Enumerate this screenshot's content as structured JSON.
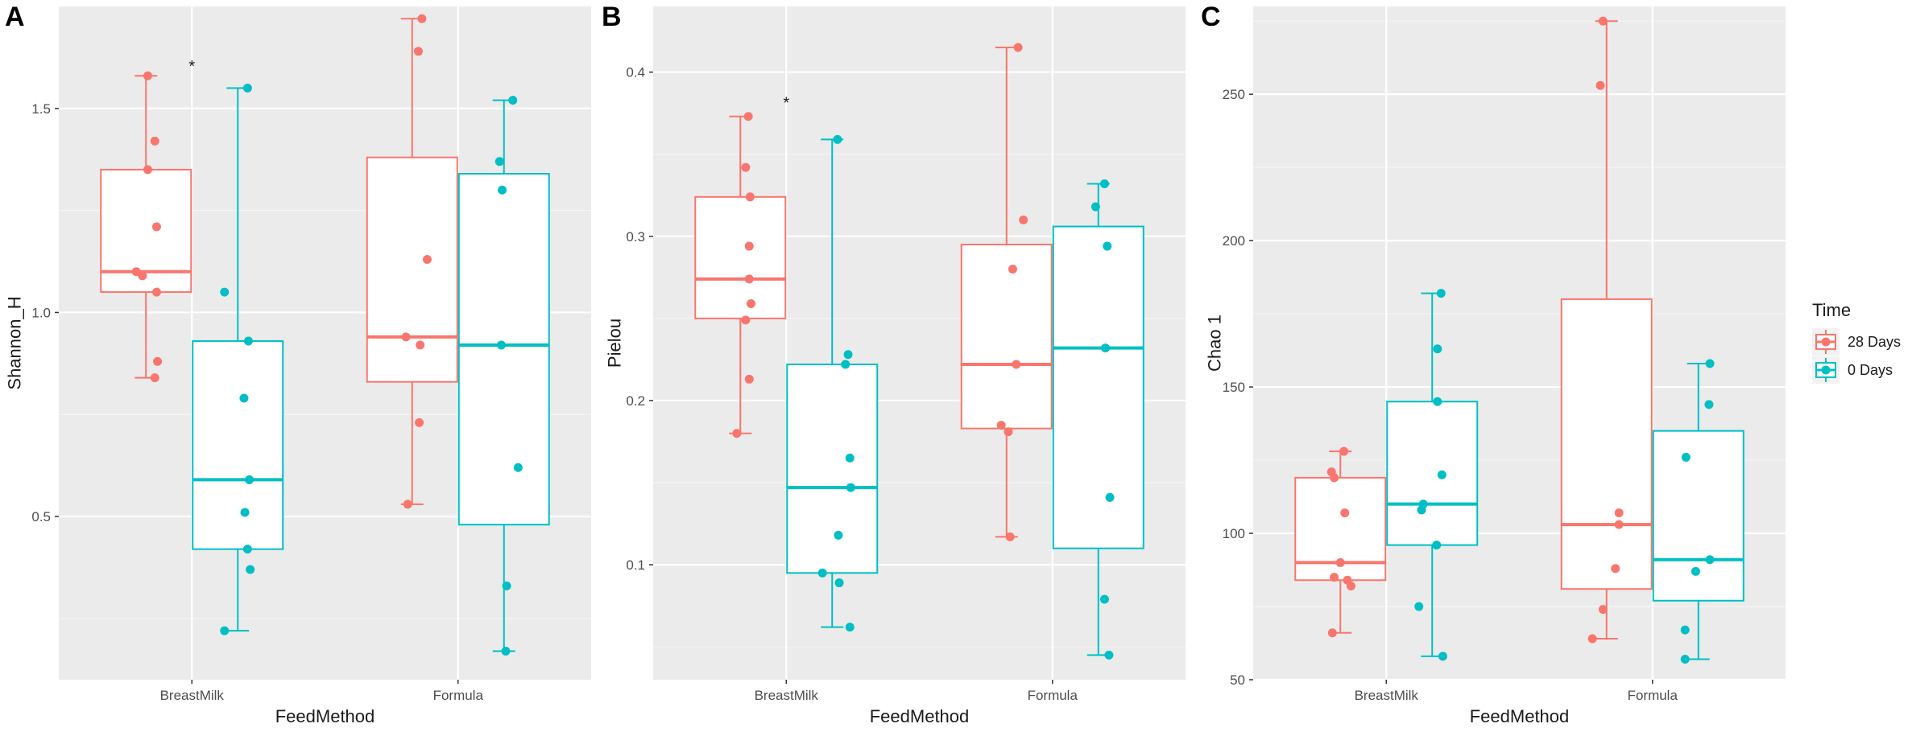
{
  "legend": {
    "title": "Time",
    "entries": [
      {
        "label": "28 Days",
        "color": "#F8766D"
      },
      {
        "label": "0 Days",
        "color": "#00BFC4"
      }
    ]
  },
  "chart_data": [
    {
      "panel_label": "A",
      "type": "boxplot",
      "xlabel": "FeedMethod",
      "ylabel": "Shannon_H",
      "categories": [
        "BreastMilk",
        "Formula"
      ],
      "ylim": [
        0.1,
        1.75
      ],
      "yticks": [
        0.5,
        1.0,
        1.5
      ],
      "ytick_labels": [
        "0.5",
        "1.0",
        "1.5"
      ],
      "annotation": {
        "text": "*",
        "category": "BreastMilk",
        "y": 1.61
      },
      "series": [
        {
          "name": "28 Days",
          "color": "#F8766D",
          "boxes": [
            {
              "category": "BreastMilk",
              "min": 0.84,
              "q1": 1.05,
              "median": 1.1,
              "q3": 1.35,
              "max": 1.58,
              "points": [
                1.58,
                1.42,
                1.35,
                1.21,
                1.1,
                1.09,
                1.05,
                0.88,
                0.84
              ],
              "jitter": [
                0.02,
                0.1,
                0.02,
                0.12,
                -0.11,
                -0.04,
                0.12,
                0.13,
                0.1
              ]
            },
            {
              "category": "Formula",
              "min": 0.53,
              "q1": 0.83,
              "median": 0.94,
              "q3": 1.38,
              "max": 1.72,
              "points": [
                1.72,
                1.64,
                1.13,
                0.94,
                0.92,
                0.73,
                0.53
              ],
              "jitter": [
                0.11,
                0.07,
                0.17,
                -0.07,
                0.09,
                0.08,
                -0.05
              ]
            }
          ]
        },
        {
          "name": "0 Days",
          "color": "#00BFC4",
          "boxes": [
            {
              "category": "BreastMilk",
              "min": 0.22,
              "q1": 0.42,
              "median": 0.59,
              "q3": 0.93,
              "max": 1.55,
              "points": [
                1.55,
                1.05,
                0.93,
                0.79,
                0.59,
                0.51,
                0.42,
                0.37,
                0.22
              ],
              "jitter": [
                0.11,
                -0.15,
                0.12,
                0.07,
                0.13,
                0.08,
                0.11,
                0.14,
                -0.15
              ]
            },
            {
              "category": "Formula",
              "min": 0.17,
              "q1": 0.48,
              "median": 0.92,
              "q3": 1.34,
              "max": 1.52,
              "points": [
                1.52,
                1.37,
                1.3,
                0.92,
                0.62,
                0.33,
                0.17
              ],
              "jitter": [
                0.1,
                -0.05,
                -0.02,
                -0.03,
                0.16,
                0.03,
                0.02
              ]
            }
          ]
        }
      ]
    },
    {
      "panel_label": "B",
      "type": "boxplot",
      "xlabel": "FeedMethod",
      "ylabel": "Pielou",
      "categories": [
        "BreastMilk",
        "Formula"
      ],
      "ylim": [
        0.03,
        0.44
      ],
      "yticks": [
        0.1,
        0.2,
        0.3,
        0.4
      ],
      "ytick_labels": [
        "0.1",
        "0.2",
        "0.3",
        "0.4"
      ],
      "annotation": {
        "text": "*",
        "category": "BreastMilk",
        "y": 0.383
      },
      "series": [
        {
          "name": "28 Days",
          "color": "#F8766D",
          "boxes": [
            {
              "category": "BreastMilk",
              "min": 0.18,
              "q1": 0.25,
              "median": 0.274,
              "q3": 0.324,
              "max": 0.373,
              "points": [
                0.373,
                0.342,
                0.324,
                0.294,
                0.274,
                0.259,
                0.249,
                0.213,
                0.18
              ],
              "jitter": [
                0.09,
                0.06,
                0.11,
                0.1,
                0.1,
                0.12,
                0.06,
                0.1,
                -0.04
              ]
            },
            {
              "category": "Formula",
              "min": 0.117,
              "q1": 0.183,
              "median": 0.222,
              "q3": 0.295,
              "max": 0.415,
              "points": [
                0.415,
                0.31,
                0.28,
                0.222,
                0.185,
                0.181,
                0.117
              ],
              "jitter": [
                0.13,
                0.19,
                0.07,
                0.11,
                -0.06,
                0.02,
                0.04
              ]
            }
          ]
        },
        {
          "name": "0 Days",
          "color": "#00BFC4",
          "boxes": [
            {
              "category": "BreastMilk",
              "min": 0.062,
              "q1": 0.095,
              "median": 0.147,
              "q3": 0.222,
              "max": 0.359,
              "points": [
                0.359,
                0.228,
                0.222,
                0.165,
                0.147,
                0.118,
                0.095,
                0.089,
                0.062
              ],
              "jitter": [
                0.06,
                0.18,
                0.15,
                0.2,
                0.21,
                0.07,
                -0.11,
                0.08,
                0.2
              ]
            },
            {
              "category": "Formula",
              "min": 0.045,
              "q1": 0.11,
              "median": 0.232,
              "q3": 0.306,
              "max": 0.332,
              "points": [
                0.332,
                0.318,
                0.294,
                0.232,
                0.141,
                0.079,
                0.045
              ],
              "jitter": [
                0.07,
                -0.03,
                0.1,
                0.08,
                0.13,
                0.07,
                0.12
              ]
            }
          ]
        }
      ]
    },
    {
      "panel_label": "C",
      "type": "boxplot",
      "xlabel": "FeedMethod",
      "ylabel": "Chao 1",
      "categories": [
        "BreastMilk",
        "Formula"
      ],
      "ylim": [
        50,
        280
      ],
      "yticks": [
        50,
        100,
        150,
        200,
        250
      ],
      "ytick_labels": [
        "50",
        "100",
        "150",
        "200",
        "250"
      ],
      "series": [
        {
          "name": "28 Days",
          "color": "#F8766D",
          "boxes": [
            {
              "category": "BreastMilk",
              "min": 66,
              "q1": 84,
              "median": 90,
              "q3": 119,
              "max": 128,
              "points": [
                128,
                121,
                119,
                107,
                90,
                85,
                84,
                82,
                66
              ],
              "jitter": [
                0.04,
                -0.1,
                -0.07,
                0.05,
                0.0,
                -0.07,
                0.08,
                0.12,
                -0.09
              ]
            },
            {
              "category": "Formula",
              "min": 64,
              "q1": 81,
              "median": 103,
              "q3": 180,
              "max": 275,
              "points": [
                275,
                253,
                107,
                103,
                88,
                74,
                64
              ],
              "jitter": [
                -0.04,
                -0.07,
                0.14,
                0.14,
                0.1,
                -0.04,
                -0.16
              ]
            }
          ]
        },
        {
          "name": "0 Days",
          "color": "#00BFC4",
          "boxes": [
            {
              "category": "BreastMilk",
              "min": 58,
              "q1": 96,
              "median": 110,
              "q3": 145,
              "max": 182,
              "points": [
                182,
                163,
                145,
                120,
                110,
                108,
                96,
                75,
                58
              ],
              "jitter": [
                0.1,
                0.06,
                0.06,
                0.11,
                -0.1,
                -0.12,
                0.05,
                -0.15,
                0.12
              ]
            },
            {
              "category": "Formula",
              "min": 57,
              "q1": 77,
              "median": 91,
              "q3": 135,
              "max": 158,
              "points": [
                158,
                144,
                126,
                91,
                87,
                67,
                57
              ],
              "jitter": [
                0.13,
                0.12,
                -0.14,
                0.13,
                -0.03,
                -0.15,
                -0.15
              ]
            }
          ]
        }
      ]
    }
  ]
}
